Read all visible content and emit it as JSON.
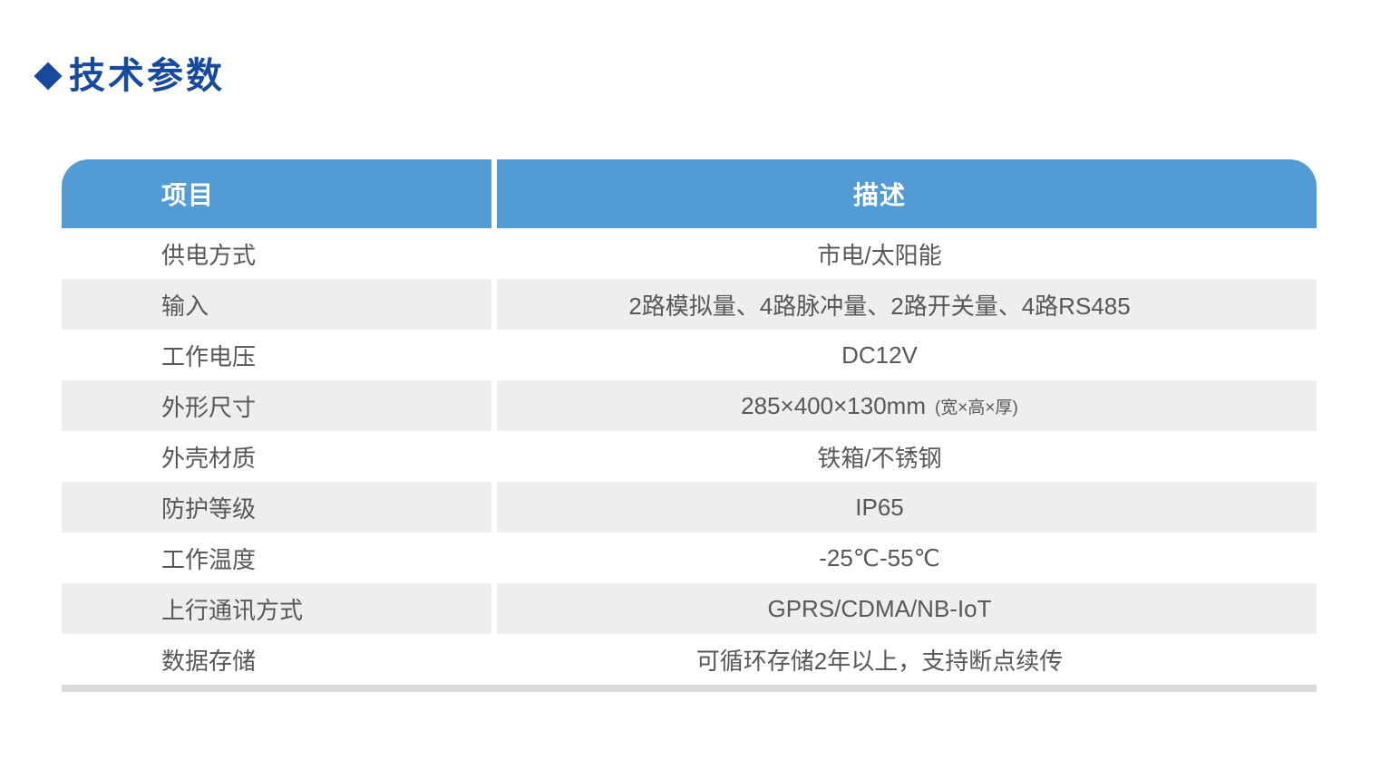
{
  "page": {
    "title": "技术参数",
    "title_color": "#17499E"
  },
  "table": {
    "header": {
      "item": "项目",
      "description": "描述"
    },
    "rows": [
      {
        "label": "供电方式",
        "value": "市电/太阳能"
      },
      {
        "label": "输入",
        "value": "2路模拟量、4路脉冲量、2路开关量、4路RS485"
      },
      {
        "label": "工作电压",
        "value": "DC12V"
      },
      {
        "label": "外形尺寸",
        "value": "285×400×130mm",
        "note": "(宽×高×厚)"
      },
      {
        "label": "外壳材质",
        "value": "铁箱/不锈钢"
      },
      {
        "label": "防护等级",
        "value": "IP65"
      },
      {
        "label": "工作温度",
        "value": "-25℃-55℃"
      },
      {
        "label": "上行通讯方式",
        "value": "GPRS/CDMA/NB-IoT"
      },
      {
        "label": "数据存储",
        "value": "可循环存储2年以上，支持断点续传"
      }
    ],
    "colors": {
      "header_bg": "#529BD5",
      "header_text": "#FFFFFF",
      "stripe_bg": "#EEEEEE",
      "bottom_bar": "#DBDBDB",
      "body_text": "#595757"
    }
  }
}
